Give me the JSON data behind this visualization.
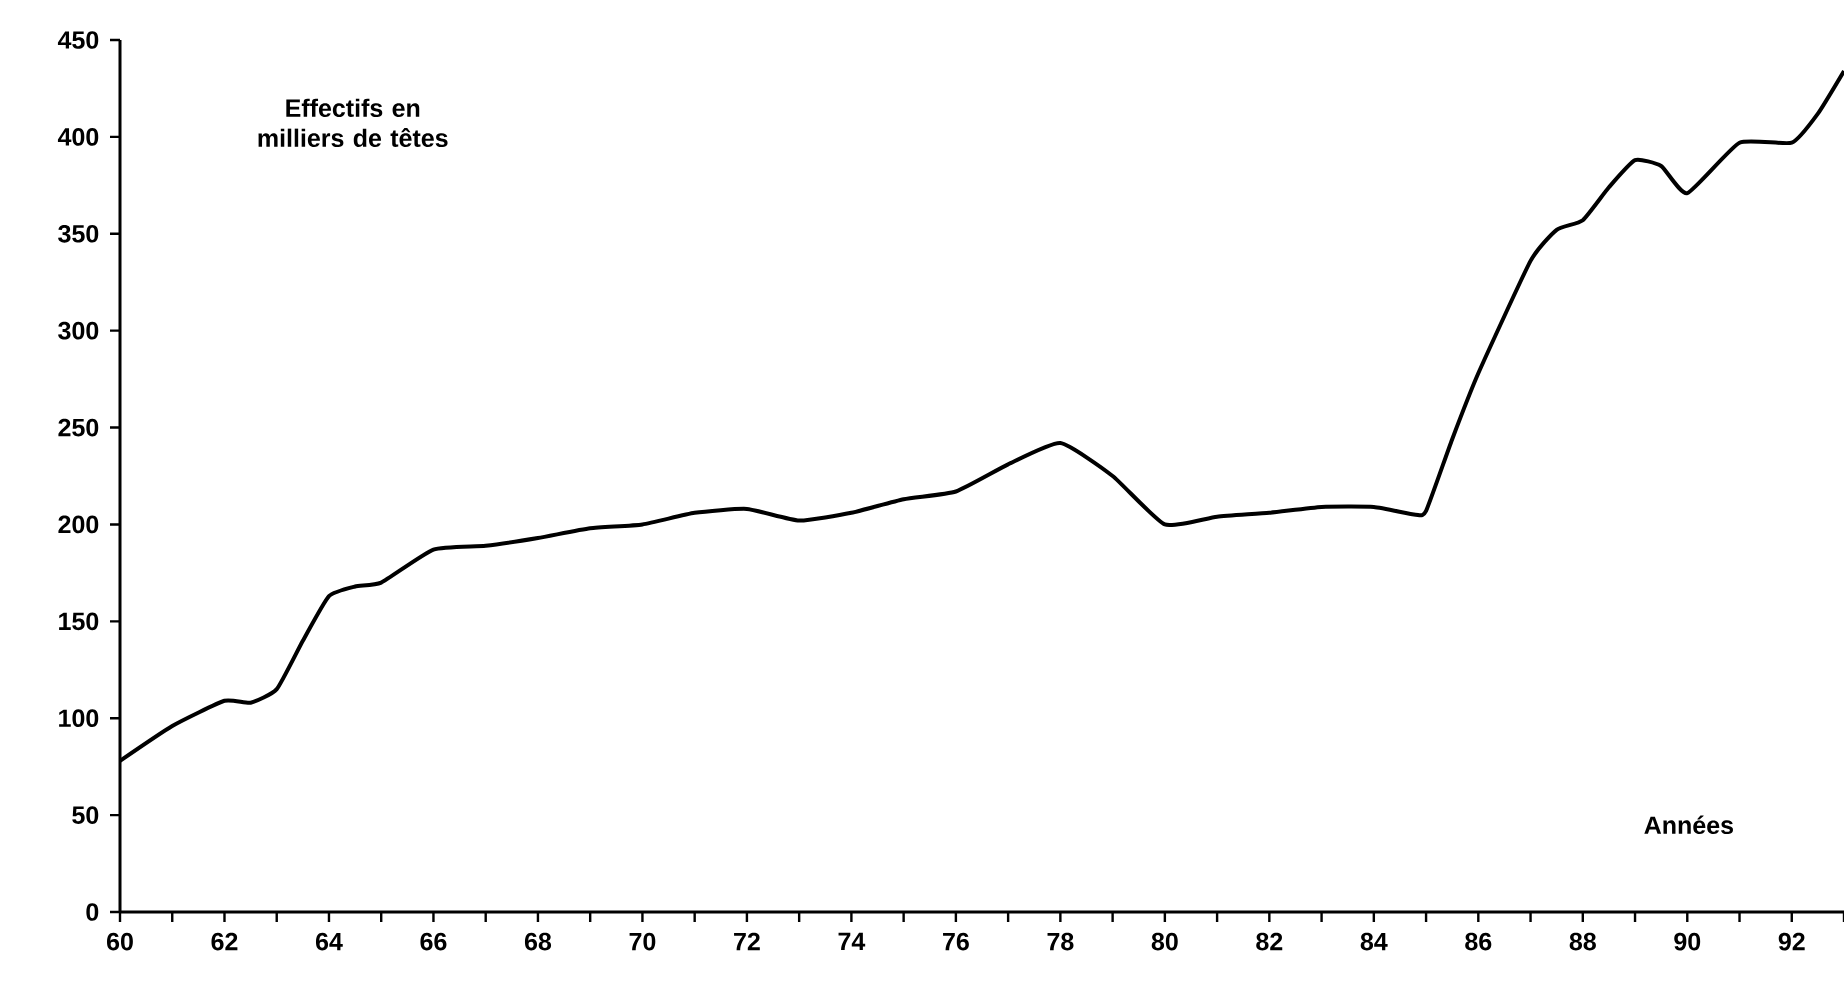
{
  "chart_data": {
    "type": "line",
    "xlabel": "Années",
    "ylabel": "Effectifs en milliers de têtes",
    "x": [
      60,
      61,
      62,
      62.5,
      63,
      63.5,
      64,
      64.5,
      65,
      66,
      67,
      68,
      69,
      70,
      71,
      72,
      73,
      74,
      75,
      76,
      77,
      78,
      79,
      80,
      81,
      82,
      83,
      84,
      84.8,
      85,
      85.5,
      86,
      87,
      87.5,
      88,
      88.5,
      89,
      89.5,
      90,
      91,
      92,
      92.5,
      93
    ],
    "series": [
      {
        "color": "#000000",
        "values": [
          78,
          96,
          109,
          108,
          115,
          140,
          163,
          168,
          170,
          187,
          189,
          193,
          198,
          200,
          206,
          208,
          202,
          206,
          213,
          217,
          231,
          242,
          225,
          200,
          204,
          206,
          209,
          209,
          205,
          207,
          244,
          278,
          336,
          352,
          357,
          374,
          388,
          385,
          371,
          397,
          397,
          412,
          434
        ]
      }
    ],
    "xlim": [
      60,
      93
    ],
    "ylim": [
      0,
      450
    ],
    "xticks": [
      60,
      {
        "value": 61,
        "label": null
      },
      62,
      {
        "value": 63,
        "label": null
      },
      64,
      {
        "value": 65,
        "label": null
      },
      66,
      {
        "value": 67,
        "label": null
      },
      68,
      {
        "value": 69,
        "label": null
      },
      70,
      {
        "value": 71,
        "label": null
      },
      72,
      {
        "value": 73,
        "label": null
      },
      74,
      {
        "value": 75,
        "label": null
      },
      76,
      {
        "value": 77,
        "label": null
      },
      78,
      {
        "value": 79,
        "label": null
      },
      80,
      {
        "value": 81,
        "label": null
      },
      82,
      {
        "value": 83,
        "label": null
      },
      84,
      {
        "value": 85,
        "label": null
      },
      86,
      {
        "value": 87,
        "label": null
      },
      88,
      {
        "value": 89,
        "label": null
      },
      90,
      {
        "value": 91,
        "label": null
      },
      92,
      {
        "value": 93,
        "label": null
      }
    ],
    "yticks": [
      0,
      50,
      100,
      150,
      200,
      250,
      300,
      350,
      400,
      450
    ],
    "grid": false,
    "marker": "none",
    "line_style": "solid"
  }
}
